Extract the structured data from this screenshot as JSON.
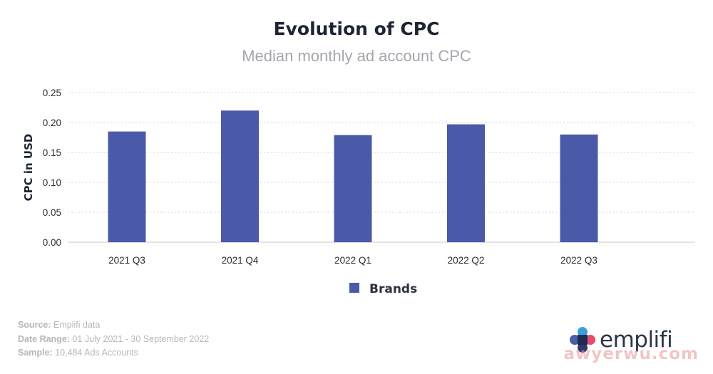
{
  "chart_data": {
    "type": "bar",
    "title": "Evolution of CPC",
    "subtitle": "Median monthly ad account CPC",
    "categories": [
      "2021 Q3",
      "2021 Q4",
      "2022 Q1",
      "2022 Q2",
      "2022 Q3"
    ],
    "series": [
      {
        "name": "Brands",
        "values": [
          0.185,
          0.22,
          0.179,
          0.197,
          0.18
        ],
        "color": "#4a5aa8"
      }
    ],
    "xlabel": "",
    "ylabel": "CPC in USD",
    "ylim": [
      0,
      0.25
    ],
    "yticks": [
      "0.00",
      "0.05",
      "0.10",
      "0.15",
      "0.20",
      "0.25"
    ],
    "grid": true,
    "legend_position": "bottom-center"
  },
  "footer": {
    "source_key": "Source:",
    "source_value": "Emplifi data",
    "range_key": "Date Range:",
    "range_value": "01 July 2021 - 30 September 2022",
    "sample_key": "Sample:",
    "sample_value": "10,484 Ads Accounts"
  },
  "logo": {
    "text": "emplifi",
    "icon": "emplifi-logo-icon"
  },
  "watermark": "awyerwu.com",
  "colors": {
    "bar": "#4a5aa8",
    "title": "#1d2433",
    "subtitle": "#a3a7ad",
    "grid": "#d4d4d4",
    "footer": "#b4b7bb"
  }
}
